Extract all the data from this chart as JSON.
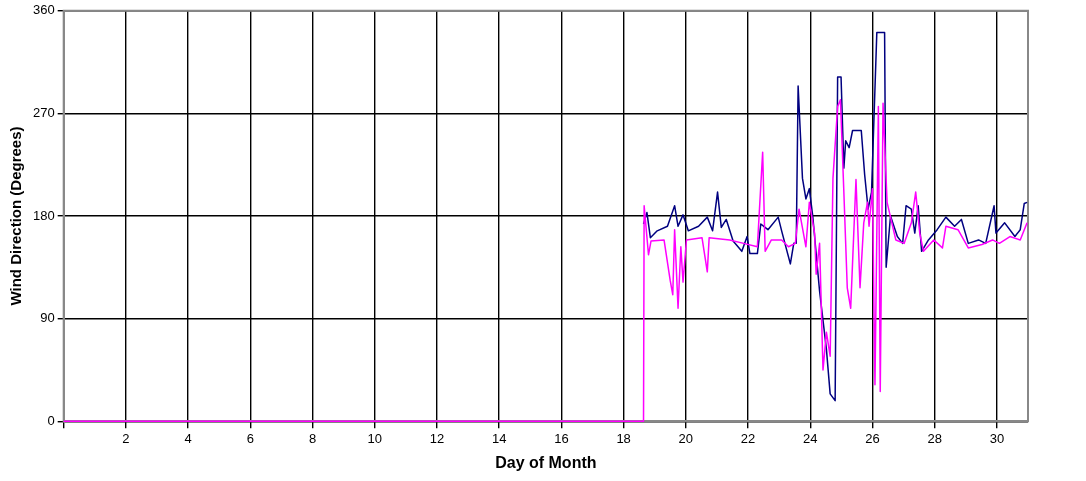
{
  "chart_data": {
    "type": "line",
    "xlabel": "Day of Month",
    "ylabel": "Wind Direction (Degrees)",
    "xlim": [
      0,
      31
    ],
    "xticks": [
      {
        "value": 0,
        "label": null
      },
      2,
      4,
      6,
      8,
      10,
      12,
      14,
      16,
      18,
      20,
      22,
      24,
      26,
      28,
      30
    ],
    "ylim": [
      0,
      360
    ],
    "yticks": [
      0,
      90,
      180,
      270,
      360
    ],
    "grid": true,
    "legend": false,
    "marker": "none",
    "line_style": "solid",
    "series": [
      {
        "color": "#000080",
        "x": [
          18.64,
          18.75,
          18.86,
          19.08,
          19.41,
          19.64,
          19.75,
          19.91,
          20.08,
          20.41,
          20.69,
          20.86,
          21.02,
          21.14,
          21.3,
          21.52,
          21.8,
          21.97,
          22.06,
          22.3,
          22.41,
          22.64,
          22.97,
          23.08,
          23.36,
          23.47,
          23.55,
          23.61,
          23.75,
          23.86,
          23.97,
          24.08,
          24.3,
          24.52,
          24.64,
          24.8,
          24.88,
          24.99,
          25.08,
          25.14,
          25.25,
          25.36,
          25.64,
          25.75,
          25.86,
          25.97,
          26.14,
          26.39,
          26.44,
          26.58,
          26.8,
          26.97,
          27.08,
          27.25,
          27.36,
          27.47,
          27.58,
          27.8,
          28.08,
          28.36,
          28.64,
          28.86,
          29.08,
          29.41,
          29.64,
          29.91,
          29.97,
          30.25,
          30.58,
          30.75,
          30.88,
          30.97
        ],
        "values": [
          173,
          183,
          161,
          167,
          171,
          189,
          171,
          181,
          167,
          171,
          179,
          167,
          201,
          170,
          177,
          158,
          149,
          162,
          147,
          147,
          173,
          168,
          179,
          167,
          138,
          156,
          156,
          294,
          213,
          195,
          204,
          180,
          114,
          63,
          24,
          18,
          302,
          302,
          222,
          246,
          240,
          255,
          255,
          216,
          186,
          201,
          341,
          341,
          135,
          180,
          162,
          156,
          189,
          186,
          165,
          189,
          149,
          159,
          168,
          179,
          171,
          177,
          156,
          159,
          156,
          189,
          165,
          174,
          162,
          168,
          191,
          192
        ]
      },
      {
        "color": "#ff00ff",
        "x": [
          0,
          18.64,
          18.66,
          18.8,
          18.88,
          19.3,
          19.5,
          19.58,
          19.64,
          19.75,
          19.84,
          19.91,
          20.02,
          20.52,
          20.69,
          20.75,
          21.41,
          21.86,
          22.3,
          22.47,
          22.55,
          22.75,
          23.08,
          23.3,
          23.52,
          23.64,
          23.86,
          23.97,
          24.14,
          24.19,
          24.3,
          24.41,
          24.52,
          24.64,
          24.73,
          24.88,
          24.97,
          25.08,
          25.19,
          25.3,
          25.47,
          25.6,
          25.72,
          25.84,
          25.89,
          26.0,
          26.08,
          26.19,
          26.25,
          26.34,
          26.47,
          26.75,
          27.02,
          27.25,
          27.39,
          27.52,
          27.64,
          27.97,
          28.25,
          28.36,
          28.75,
          29.08,
          29.52,
          29.86,
          30.08,
          30.42,
          30.75,
          30.97
        ],
        "values": [
          0,
          0,
          189,
          146,
          158,
          159,
          123,
          111,
          168,
          99,
          153,
          122,
          159,
          161,
          131,
          161,
          159,
          156,
          153,
          236,
          149,
          159,
          159,
          153,
          156,
          186,
          153,
          192,
          165,
          129,
          156,
          45,
          78,
          57,
          213,
          276,
          282,
          201,
          117,
          99,
          212,
          117,
          174,
          192,
          171,
          204,
          32,
          276,
          26,
          279,
          192,
          159,
          156,
          174,
          201,
          165,
          149,
          159,
          152,
          171,
          168,
          152,
          155,
          159,
          156,
          162,
          159,
          174
        ]
      }
    ]
  }
}
